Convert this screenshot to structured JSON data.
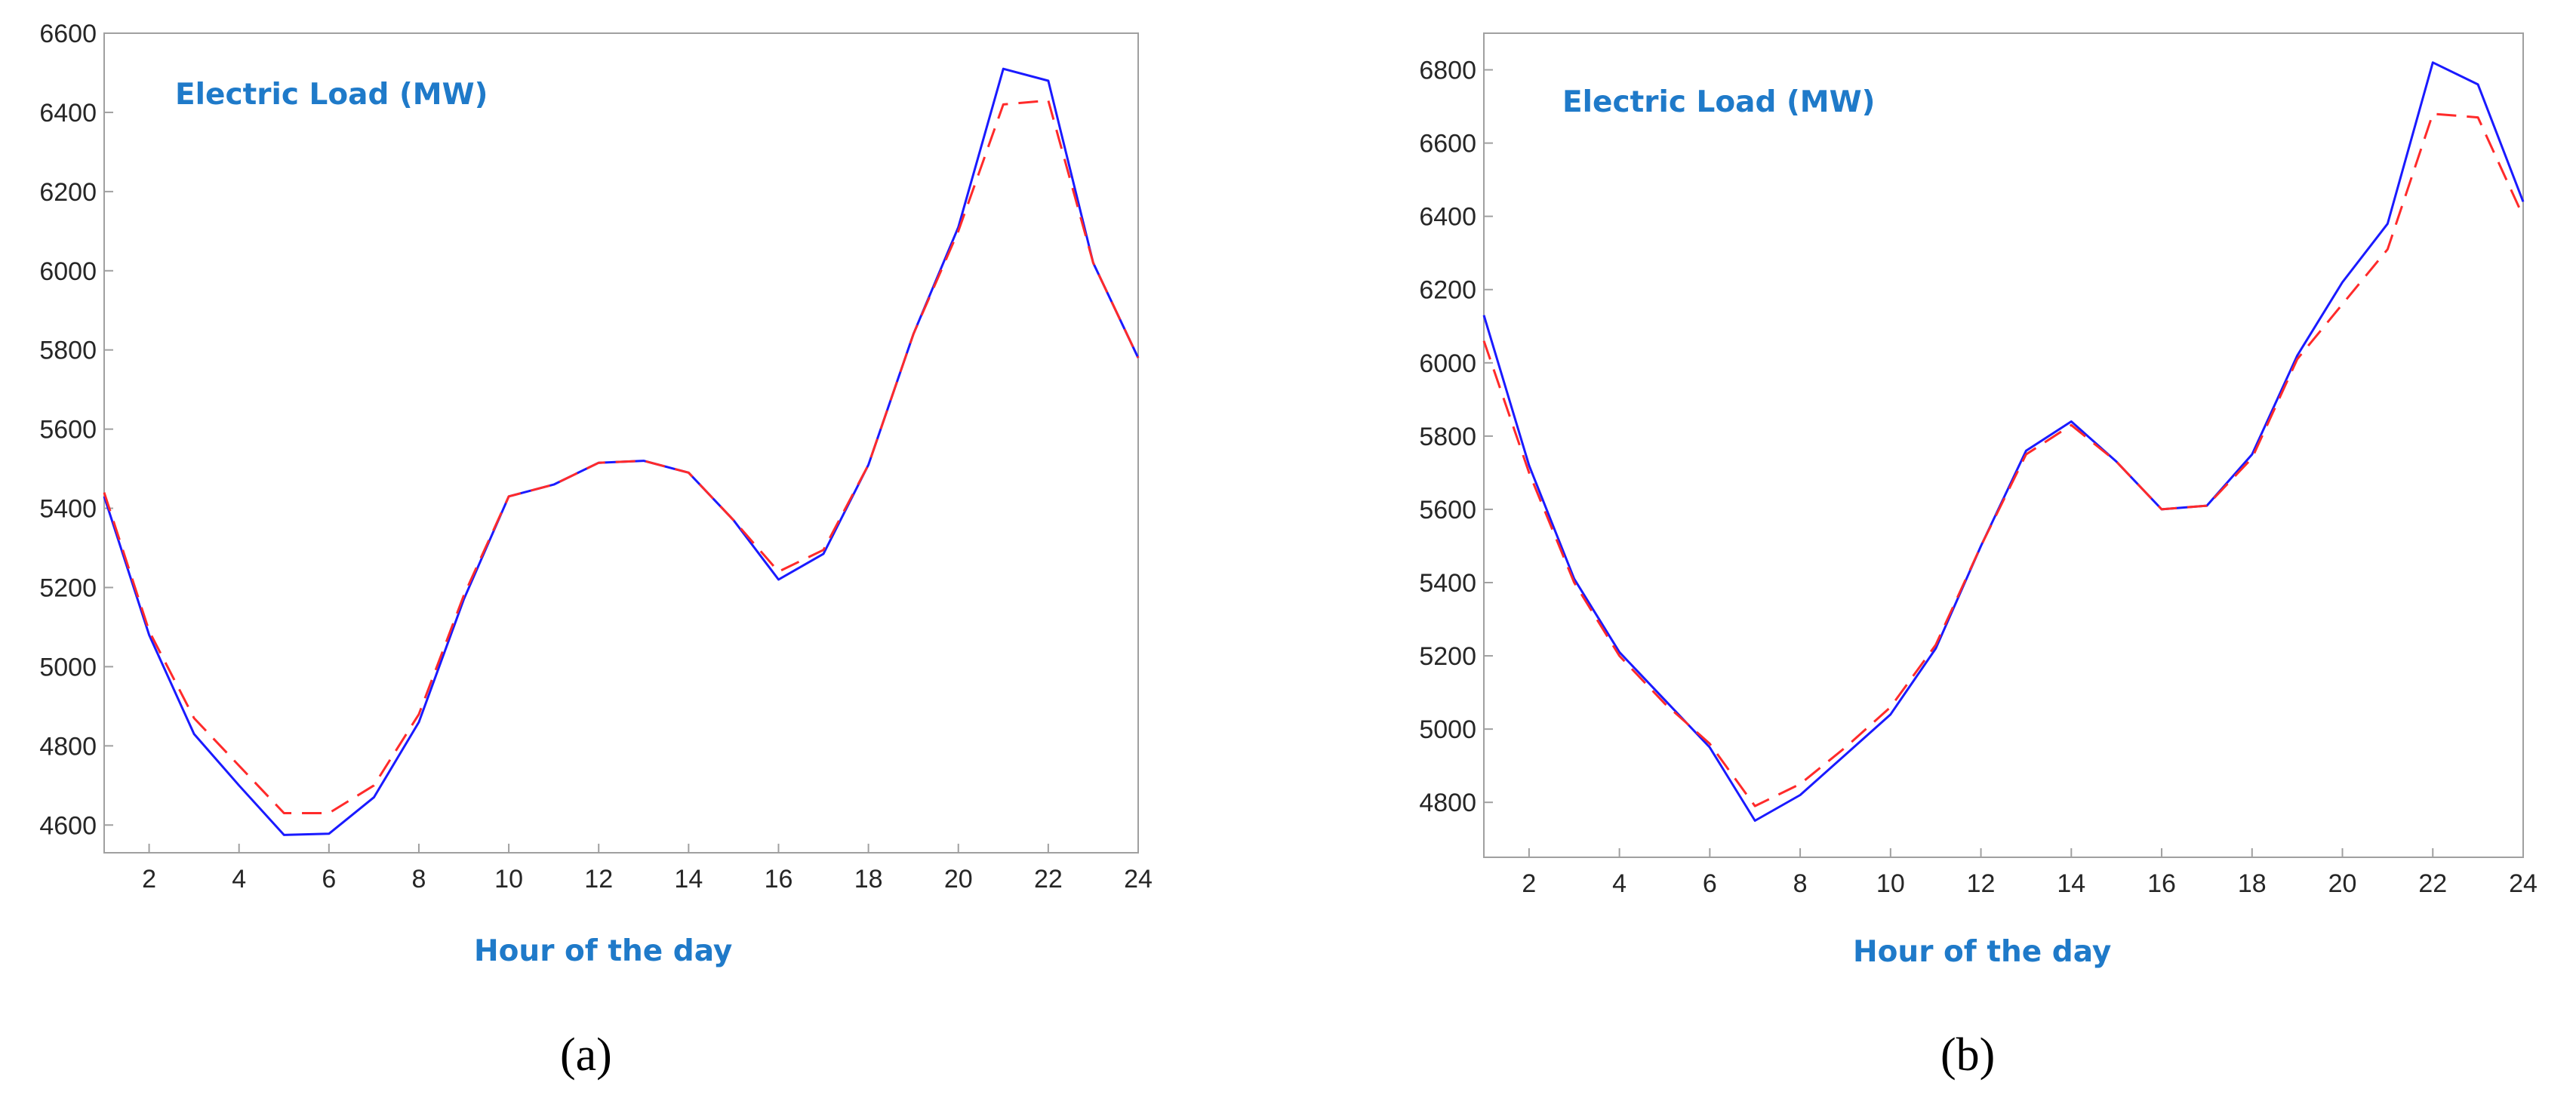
{
  "figure": {
    "panels": [
      "(a)",
      "(b)"
    ]
  },
  "chart_data": [
    {
      "type": "line",
      "panel_label": "(a)",
      "title": "",
      "annotation": "Electric Load (MW)",
      "xlabel": "Hour of the day",
      "ylabel": "",
      "xlim": [
        1,
        24
      ],
      "ylim": [
        4530,
        6600
      ],
      "x_ticks": [
        2,
        4,
        6,
        8,
        10,
        12,
        14,
        16,
        18,
        20,
        22,
        24
      ],
      "y_ticks": [
        4600,
        4800,
        5000,
        5200,
        5400,
        5600,
        5800,
        6000,
        6200,
        6400,
        6600
      ],
      "x": [
        1,
        2,
        3,
        4,
        5,
        6,
        7,
        8,
        9,
        10,
        11,
        12,
        13,
        14,
        15,
        16,
        17,
        18,
        19,
        20,
        21,
        22,
        23,
        24
      ],
      "series": [
        {
          "color": "#1a1aff",
          "style": "solid",
          "values": [
            5430,
            5080,
            4830,
            4700,
            4575,
            4578,
            4670,
            4860,
            5170,
            5430,
            5460,
            5515,
            5520,
            5490,
            5370,
            5220,
            5285,
            5510,
            5840,
            6110,
            6510,
            6480,
            6020,
            5780
          ]
        },
        {
          "color": "#ff2a2a",
          "style": "dashed",
          "values": [
            5440,
            5090,
            4870,
            4750,
            4630,
            4630,
            4700,
            4880,
            5180,
            5430,
            5460,
            5515,
            5520,
            5490,
            5370,
            5240,
            5295,
            5510,
            5840,
            6100,
            6420,
            6430,
            6020,
            5780
          ]
        }
      ],
      "grid": false,
      "legend": "none"
    },
    {
      "type": "line",
      "panel_label": "(b)",
      "title": "",
      "annotation": "Electric Load (MW)",
      "xlabel": "Hour of the day",
      "ylabel": "",
      "xlim": [
        1,
        24
      ],
      "ylim": [
        4650,
        6900
      ],
      "x_ticks": [
        2,
        4,
        6,
        8,
        10,
        12,
        14,
        16,
        18,
        20,
        22,
        24
      ],
      "y_ticks": [
        4800,
        5000,
        5200,
        5400,
        5600,
        5800,
        6000,
        6200,
        6400,
        6600,
        6800
      ],
      "x": [
        1,
        2,
        3,
        4,
        5,
        6,
        7,
        8,
        9,
        10,
        11,
        12,
        13,
        14,
        15,
        16,
        17,
        18,
        19,
        20,
        21,
        22,
        23,
        24
      ],
      "series": [
        {
          "color": "#1a1aff",
          "style": "solid",
          "values": [
            6130,
            5720,
            5410,
            5210,
            5080,
            4950,
            4750,
            4820,
            4930,
            5040,
            5220,
            5500,
            5760,
            5840,
            5730,
            5600,
            5610,
            5750,
            6020,
            6220,
            6380,
            6820,
            6760,
            6440
          ]
        },
        {
          "color": "#ff2a2a",
          "style": "dashed",
          "values": [
            6060,
            5700,
            5400,
            5200,
            5070,
            4960,
            4790,
            4850,
            4950,
            5060,
            5230,
            5500,
            5750,
            5830,
            5730,
            5600,
            5610,
            5740,
            6010,
            6160,
            6310,
            6680,
            6670,
            6400
          ]
        }
      ],
      "grid": false,
      "legend": "none"
    }
  ]
}
